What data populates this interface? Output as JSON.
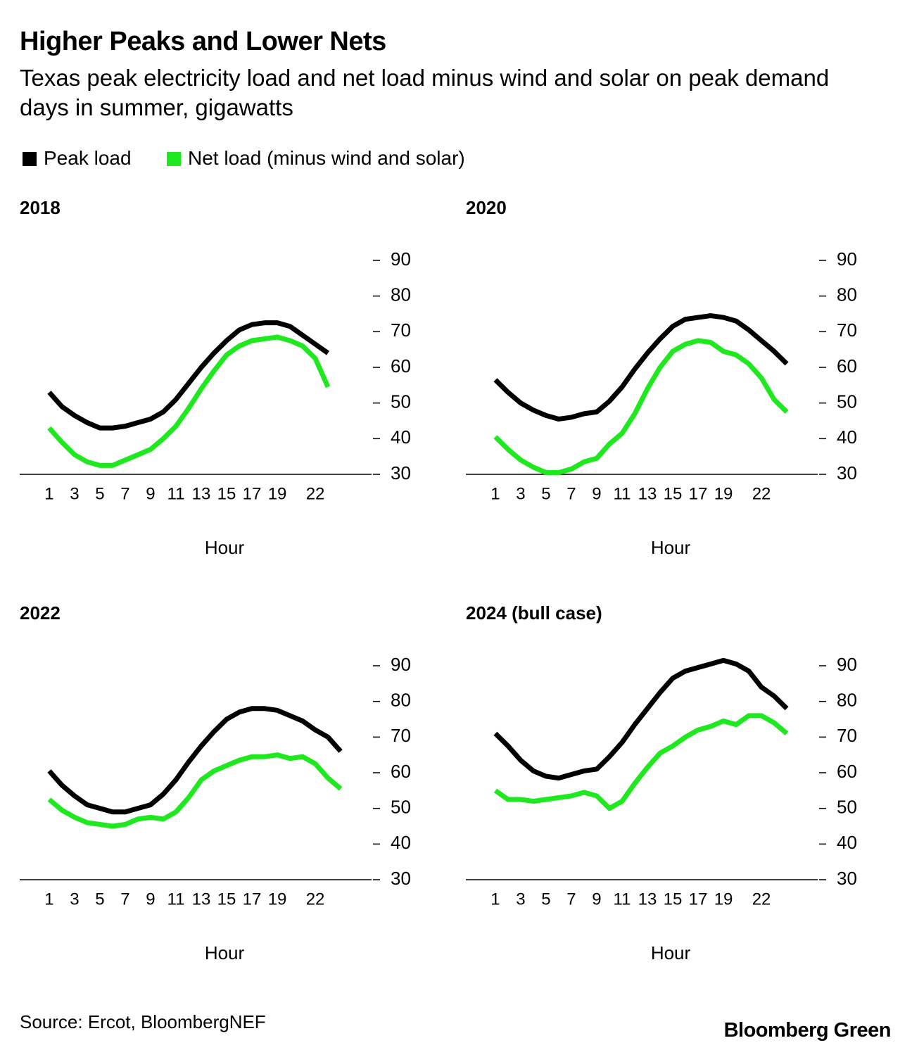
{
  "title": "Higher Peaks and Lower Nets",
  "subtitle": "Texas peak electricity load and net load minus wind and solar on peak demand days in summer, gigawatts",
  "source": "Source: Ercot, BloombergNEF",
  "brand": "Bloomberg Green",
  "chart_data": [
    {
      "type": "line",
      "title": "2018",
      "xlabel": "Hour",
      "x": [
        1,
        2,
        3,
        4,
        5,
        6,
        7,
        8,
        9,
        10,
        11,
        12,
        13,
        14,
        15,
        16,
        17,
        18,
        19,
        20,
        21,
        22,
        23
      ],
      "xlim": [
        -1.33,
        26.44
      ],
      "xticks": [
        1,
        3,
        5,
        7,
        9,
        11,
        13,
        15,
        17,
        19,
        22
      ],
      "ylim": [
        30,
        90
      ],
      "yticks": [
        30,
        40,
        50,
        60,
        70,
        80,
        90
      ],
      "series": [
        {
          "name": "Peak load",
          "color": "#000000",
          "values": [
            53,
            49,
            46.5,
            44.5,
            43,
            43,
            43.5,
            44.5,
            45.5,
            47.5,
            51,
            55.5,
            60,
            64,
            67.5,
            70.5,
            72,
            72.5,
            72.5,
            71.5,
            69,
            66.5,
            64
          ]
        },
        {
          "name": "Net load (minus wind and solar)",
          "color": "#1ee81e",
          "values": [
            43,
            39,
            35.5,
            33.5,
            32.5,
            32.5,
            34,
            35.5,
            37,
            40,
            43.5,
            48.5,
            54,
            59,
            63.5,
            66,
            67.5,
            68,
            68.5,
            67.5,
            66,
            62.5,
            54.5
          ]
        }
      ]
    },
    {
      "type": "line",
      "title": "2020",
      "xlabel": "Hour",
      "x": [
        1,
        2,
        3,
        4,
        5,
        6,
        7,
        8,
        9,
        10,
        11,
        12,
        13,
        14,
        15,
        16,
        17,
        18,
        19,
        20,
        21,
        22,
        23,
        24
      ],
      "xlim": [
        -1.33,
        26.44
      ],
      "xticks": [
        1,
        3,
        5,
        7,
        9,
        11,
        13,
        15,
        17,
        19,
        22
      ],
      "ylim": [
        30,
        90
      ],
      "yticks": [
        30,
        40,
        50,
        60,
        70,
        80,
        90
      ],
      "series": [
        {
          "name": "Peak load",
          "color": "#000000",
          "values": [
            56.5,
            53,
            50,
            48,
            46.5,
            45.5,
            46,
            47,
            47.5,
            50.5,
            54.5,
            59.5,
            64,
            68,
            71.5,
            73.5,
            74,
            74.5,
            74,
            73,
            70.5,
            67.5,
            64.5,
            61
          ]
        },
        {
          "name": "Net load (minus wind and solar)",
          "color": "#1ee81e",
          "values": [
            40.5,
            37,
            34,
            32,
            30.5,
            30.5,
            31.5,
            33.5,
            34.5,
            38.5,
            41.5,
            47,
            54,
            60,
            64.5,
            66.5,
            67.5,
            67,
            64.5,
            63.5,
            61,
            57,
            51,
            47.5
          ]
        }
      ]
    },
    {
      "type": "line",
      "title": "2022",
      "xlabel": "Hour",
      "x": [
        1,
        2,
        3,
        4,
        5,
        6,
        7,
        8,
        9,
        10,
        11,
        12,
        13,
        14,
        15,
        16,
        17,
        18,
        19,
        20,
        21,
        22,
        23,
        24
      ],
      "xlim": [
        -1.33,
        26.44
      ],
      "xticks": [
        1,
        3,
        5,
        7,
        9,
        11,
        13,
        15,
        17,
        19,
        22
      ],
      "ylim": [
        30,
        90
      ],
      "yticks": [
        30,
        40,
        50,
        60,
        70,
        80,
        90
      ],
      "series": [
        {
          "name": "Peak load",
          "color": "#000000",
          "values": [
            60.5,
            56.5,
            53.5,
            51,
            50,
            49,
            49,
            50,
            51,
            54,
            58,
            63,
            67.5,
            71.5,
            75,
            77,
            78,
            78,
            77.5,
            76,
            74.5,
            72,
            70,
            66
          ]
        },
        {
          "name": "Net load (minus wind and solar)",
          "color": "#1ee81e",
          "values": [
            52.5,
            49.5,
            47.5,
            46,
            45.5,
            45,
            45.5,
            47,
            47.5,
            47,
            49,
            53,
            58,
            60.5,
            62,
            63.5,
            64.5,
            64.5,
            65,
            64,
            64.5,
            62.5,
            58.5,
            55.5
          ]
        }
      ]
    },
    {
      "type": "line",
      "title": "2024 (bull case)",
      "xlabel": "Hour",
      "x": [
        1,
        2,
        3,
        4,
        5,
        6,
        7,
        8,
        9,
        10,
        11,
        12,
        13,
        14,
        15,
        16,
        17,
        18,
        19,
        20,
        21,
        22,
        23,
        24
      ],
      "xlim": [
        -1.33,
        26.44
      ],
      "xticks": [
        1,
        3,
        5,
        7,
        9,
        11,
        13,
        15,
        17,
        19,
        22
      ],
      "ylim": [
        30,
        90
      ],
      "yticks": [
        30,
        40,
        50,
        60,
        70,
        80,
        90
      ],
      "series": [
        {
          "name": "Peak load",
          "color": "#000000",
          "values": [
            71,
            67.5,
            63.5,
            60.5,
            59,
            58.5,
            59.5,
            60.5,
            61,
            64.5,
            68.5,
            73.5,
            78,
            82.5,
            86.5,
            88.5,
            89.5,
            90.5,
            91.5,
            90.5,
            88.5,
            84,
            81.5,
            78
          ]
        },
        {
          "name": "Net load (minus wind and solar)",
          "color": "#1ee81e",
          "values": [
            55,
            52.5,
            52.5,
            52,
            52.5,
            53,
            53.5,
            54.5,
            53.5,
            50,
            52,
            57,
            61.5,
            65.5,
            67.5,
            70,
            72,
            73,
            74.5,
            73.5,
            76,
            76,
            74,
            71
          ]
        }
      ]
    }
  ]
}
